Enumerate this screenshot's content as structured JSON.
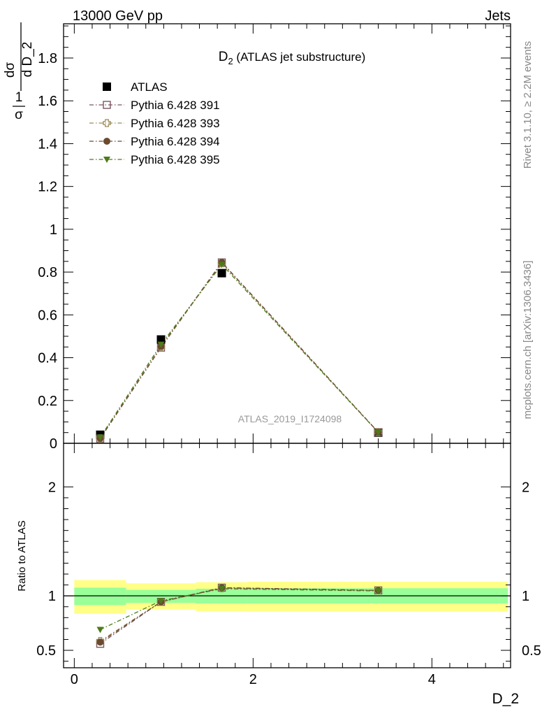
{
  "header": {
    "left": "13000 GeV pp",
    "right": "Jets"
  },
  "side_labels": {
    "top": "Rivet 3.1.10, ≥ 2.2M events",
    "bottom": "mcplots.cern.ch [arXiv:1306.3436]"
  },
  "chart_data": [
    {
      "type": "line",
      "title_main": "D",
      "title_sub": "2",
      "title_rest": " (ATLAS jet substructure)",
      "watermark": "ATLAS_2019_I1724098",
      "ylabel": {
        "num1": "1",
        "den1": "σ",
        "num2": "dσ",
        "den2": "d D_2"
      },
      "xlim": [
        -0.12,
        4.88
      ],
      "ylim": [
        0,
        1.96
      ],
      "yticks": [
        0,
        0.2,
        0.4,
        0.6,
        0.8,
        1,
        1.2,
        1.4,
        1.6,
        1.8
      ],
      "yticklabels": [
        "0",
        "0.2",
        "0.4",
        "0.6",
        "0.8",
        "1",
        "1.2",
        "1.4",
        "1.6",
        "1.8"
      ],
      "x": [
        0.29,
        0.97,
        1.65,
        3.4
      ],
      "series": [
        {
          "name": "ATLAS",
          "marker": "square-filled",
          "color": "#000000",
          "values": [
            0.04,
            0.485,
            0.795,
            0.05
          ]
        },
        {
          "name": "Pythia 6.428 391",
          "marker": "square-open",
          "color": "#7a5560",
          "values": [
            0.022,
            0.447,
            0.845,
            0.052
          ]
        },
        {
          "name": "Pythia 6.428 393",
          "marker": "cross-open",
          "color": "#9a8a56",
          "values": [
            0.023,
            0.449,
            0.843,
            0.052
          ]
        },
        {
          "name": "Pythia 6.428 394",
          "marker": "circle-filled",
          "color": "#6b4a30",
          "values": [
            0.023,
            0.452,
            0.846,
            0.052
          ]
        },
        {
          "name": "Pythia 6.428 395",
          "marker": "triangle-down-filled",
          "color": "#4e7a1a",
          "values": [
            0.028,
            0.462,
            0.835,
            0.051
          ]
        }
      ]
    },
    {
      "type": "line",
      "ylabel": "Ratio to ATLAS",
      "xlabel": "D_2",
      "xlim": [
        -0.12,
        4.88
      ],
      "ylim": [
        0.34,
        2.4
      ],
      "yticks": [
        0.5,
        1,
        2
      ],
      "yticklabels": [
        "0.5",
        "1",
        "2"
      ],
      "xticks": [
        0,
        2,
        4
      ],
      "xticklabels": [
        "0",
        "2",
        "4"
      ],
      "x": [
        0.29,
        0.97,
        1.65,
        3.4
      ],
      "bands": [
        {
          "x0": 0.0,
          "x1": 0.58,
          "yellow": [
            0.835,
            1.145
          ],
          "green": [
            0.915,
            1.075
          ]
        },
        {
          "x0": 0.58,
          "x1": 1.36,
          "yellow": [
            0.875,
            1.115
          ],
          "green": [
            0.935,
            1.055
          ]
        },
        {
          "x0": 1.36,
          "x1": 1.93,
          "yellow": [
            0.86,
            1.125
          ],
          "green": [
            0.93,
            1.065
          ]
        },
        {
          "x0": 1.93,
          "x1": 4.85,
          "yellow": [
            0.855,
            1.13
          ],
          "green": [
            0.93,
            1.07
          ]
        }
      ],
      "series": [
        {
          "name": "Pythia 6.428 391",
          "values": [
            0.56,
            0.945,
            1.075,
            1.05
          ]
        },
        {
          "name": "Pythia 6.428 393",
          "values": [
            0.585,
            0.945,
            1.07,
            1.05
          ]
        },
        {
          "name": "Pythia 6.428 394",
          "values": [
            0.575,
            0.945,
            1.075,
            1.05
          ]
        },
        {
          "name": "Pythia 6.428 395",
          "values": [
            0.69,
            0.955,
            1.065,
            1.045
          ]
        }
      ]
    }
  ]
}
